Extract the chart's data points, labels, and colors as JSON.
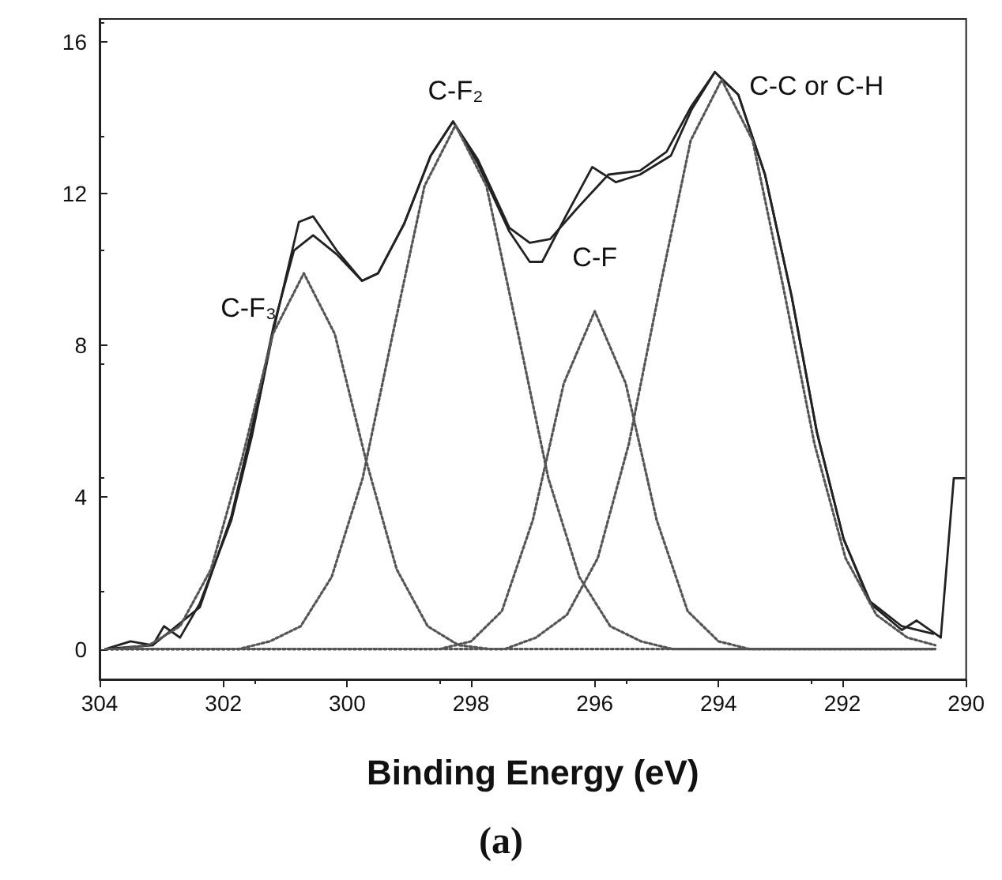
{
  "chart_data": {
    "type": "line",
    "xlabel": "Binding Energy (eV)",
    "xlim": [
      304,
      290
    ],
    "xticks": [
      304,
      302,
      300,
      298,
      296,
      294,
      292,
      290
    ],
    "ylim": [
      -0.8,
      16.6
    ],
    "yticks": [
      0,
      4,
      8,
      12,
      16
    ],
    "grid": false,
    "legend": false,
    "marker": "none",
    "annotations": [
      "(a)"
    ],
    "series": [
      {
        "color": "#222222",
        "line_style": "solid",
        "x": [
          303.9,
          303.5,
          303.14,
          302.96,
          302.7,
          302.38,
          301.87,
          301.54,
          301.19,
          300.78,
          300.55,
          300.17,
          299.76,
          299.5,
          299.08,
          298.65,
          298.29,
          297.89,
          297.38,
          297.05,
          296.85,
          296.47,
          296.04,
          295.66,
          295.27,
          294.77,
          294.44,
          294.06,
          293.68,
          293.25,
          292.82,
          292.41,
          291.98,
          291.55,
          291.04,
          290.8,
          290.41,
          290.2,
          290.03
        ],
        "values": [
          0,
          0.2,
          0.1,
          0.6,
          0.3,
          1.2,
          3.4,
          5.6,
          8.4,
          11.25,
          11.4,
          10.5,
          9.7,
          9.9,
          11.2,
          13.0,
          13.9,
          12.8,
          11.0,
          10.2,
          10.2,
          11.4,
          12.7,
          12.3,
          12.5,
          13.0,
          14.2,
          15.2,
          14.6,
          12.5,
          9.3,
          5.7,
          2.9,
          1.2,
          0.5,
          0.75,
          0.3,
          4.5,
          4.5
        ]
      },
      {
        "color": "#222222",
        "line_style": "solid",
        "x": [
          303.9,
          303.14,
          302.38,
          301.87,
          301.54,
          301.19,
          300.86,
          300.55,
          300.17,
          299.76,
          299.5,
          299.08,
          298.65,
          298.29,
          297.89,
          297.38,
          297.05,
          296.72,
          296.29,
          295.78,
          295.27,
          294.84,
          294.44,
          294.06,
          293.68,
          293.25,
          292.82,
          292.41,
          291.98,
          291.55,
          291.04,
          290.53
        ],
        "values": [
          0,
          0.1,
          1.1,
          3.5,
          5.8,
          8.5,
          10.5,
          10.9,
          10.4,
          9.7,
          9.9,
          11.2,
          13.0,
          13.9,
          12.9,
          11.1,
          10.7,
          10.8,
          11.6,
          12.5,
          12.6,
          13.1,
          14.3,
          15.2,
          14.6,
          12.5,
          9.3,
          5.7,
          2.9,
          1.25,
          0.6,
          0.4
        ]
      },
      {
        "name": "C-F₃",
        "color": "#555555",
        "line_style": "dotted",
        "x": [
          303.9,
          303.7,
          303.2,
          302.7,
          302.2,
          301.7,
          301.2,
          300.7,
          300.2,
          299.7,
          299.2,
          298.7,
          298.2,
          297.7,
          290.5
        ],
        "values": [
          0,
          0,
          0.1,
          0.6,
          2.1,
          5,
          8.3,
          9.9,
          8.3,
          5,
          2.1,
          0.6,
          0.1,
          0,
          0
        ]
      },
      {
        "name": "C-F₂",
        "color": "#555555",
        "line_style": "dotted",
        "x": [
          303.9,
          301.75,
          301.25,
          300.75,
          300.25,
          299.75,
          299.25,
          298.75,
          298.25,
          297.75,
          297.25,
          296.75,
          296.25,
          295.75,
          295.25,
          294.75,
          290.5
        ],
        "values": [
          0,
          0,
          0.2,
          0.6,
          1.9,
          4.5,
          8.4,
          12.2,
          13.8,
          12.2,
          8.4,
          4.5,
          1.9,
          0.6,
          0.2,
          0,
          0
        ]
      },
      {
        "name": "C-F",
        "color": "#555555",
        "line_style": "dotted",
        "x": [
          303.9,
          298.5,
          298,
          297.5,
          297,
          296.5,
          296,
          295.5,
          295,
          294.5,
          294,
          293.5,
          290.5
        ],
        "values": [
          0,
          0,
          0.2,
          1,
          3.4,
          7,
          8.9,
          7,
          3.4,
          1,
          0.2,
          0,
          0
        ]
      },
      {
        "name": "C-C or C-H",
        "color": "#555555",
        "line_style": "dotted",
        "x": [
          303.9,
          297.45,
          296.95,
          296.45,
          295.95,
          295.45,
          294.95,
          294.45,
          293.95,
          293.45,
          292.95,
          292.45,
          291.95,
          291.45,
          290.95,
          290.5
        ],
        "values": [
          0,
          0,
          0.3,
          0.9,
          2.4,
          5.4,
          9.5,
          13.4,
          15,
          13.4,
          9.5,
          5.4,
          2.4,
          0.9,
          0.3,
          0.1
        ]
      }
    ]
  }
}
